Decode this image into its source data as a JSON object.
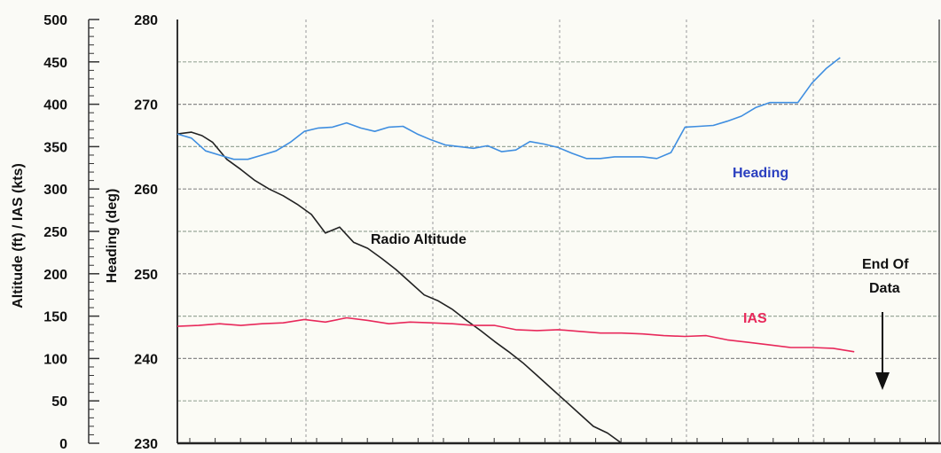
{
  "chart_data": {
    "type": "line",
    "y_left": {
      "label": "Altitude (ft) / IAS (kts)",
      "ticks": [
        "500",
        "450",
        "400",
        "350",
        "300",
        "250",
        "200",
        "150",
        "100",
        "50",
        "0"
      ],
      "range": [
        0,
        500
      ]
    },
    "y_right": {
      "label": "Heading (deg)",
      "ticks": [
        "280",
        "270",
        "260",
        "250",
        "240",
        "230"
      ],
      "range": [
        230,
        280
      ]
    },
    "x_range": [
      0,
      100
    ],
    "grid": true,
    "series": [
      {
        "name": "Radio Altitude",
        "axis": "left",
        "color": "#222222",
        "x": [
          0,
          2,
          3.5,
          5,
          7,
          9,
          11,
          13,
          15,
          17,
          19,
          21,
          23,
          25,
          27,
          29,
          31,
          33,
          35,
          37,
          39,
          41,
          43,
          45,
          47,
          49,
          51,
          53,
          55,
          57,
          59,
          61,
          63
        ],
        "y": [
          365,
          367,
          363,
          355,
          335,
          323,
          310,
          300,
          292,
          282,
          270,
          248,
          255,
          237,
          230,
          218,
          205,
          190,
          175,
          168,
          158,
          145,
          133,
          120,
          108,
          95,
          80,
          65,
          50,
          35,
          20,
          12,
          0
        ]
      },
      {
        "name": "Heading",
        "axis": "right",
        "color": "#3f8ee0",
        "x": [
          0,
          2,
          4,
          6,
          8,
          10,
          12,
          14,
          16,
          18,
          20,
          22,
          24,
          26,
          28,
          30,
          32,
          34,
          36,
          38,
          40,
          42,
          44,
          46,
          48,
          50,
          52,
          54,
          56,
          58,
          60,
          62,
          64,
          66,
          68,
          70,
          72,
          74,
          76,
          78,
          80,
          82,
          84,
          86,
          88,
          90,
          92,
          94
        ],
        "y": [
          266.5,
          266,
          264.5,
          264,
          263.5,
          263.5,
          264,
          264.5,
          265.5,
          266.8,
          267.2,
          267.3,
          267.8,
          267.2,
          266.8,
          267.3,
          267.4,
          266.5,
          265.8,
          265.2,
          265,
          264.8,
          265.1,
          264.4,
          264.6,
          265.6,
          265.3,
          264.9,
          264.2,
          263.6,
          263.6,
          263.8,
          263.8,
          263.8,
          263.6,
          264.3,
          267.3,
          267.4,
          267.5,
          268,
          268.6,
          269.6,
          270.2,
          270.2,
          270.2,
          272.5,
          274.2,
          275.5
        ]
      },
      {
        "name": "IAS",
        "axis": "left",
        "color": "#e8285a",
        "x": [
          0,
          3,
          6,
          9,
          12,
          15,
          18,
          21,
          24,
          27,
          30,
          33,
          36,
          39,
          42,
          45,
          48,
          51,
          54,
          57,
          60,
          63,
          66,
          69,
          72,
          75,
          78,
          81,
          84,
          87,
          90,
          93,
          96
        ],
        "y": [
          138,
          139,
          141,
          139,
          141,
          142,
          146,
          143,
          148,
          145,
          141,
          143,
          142,
          141,
          139,
          139,
          134,
          133,
          134,
          132,
          130,
          130,
          129,
          127,
          126,
          127,
          122,
          119,
          116,
          113,
          113,
          112,
          108
        ]
      }
    ],
    "annotations": {
      "heading_label": "Heading",
      "radio_altitude_label": "Radio Altitude",
      "ias_label": "IAS",
      "end_of_data_line1": "End Of",
      "end_of_data_line2": "Data"
    }
  }
}
